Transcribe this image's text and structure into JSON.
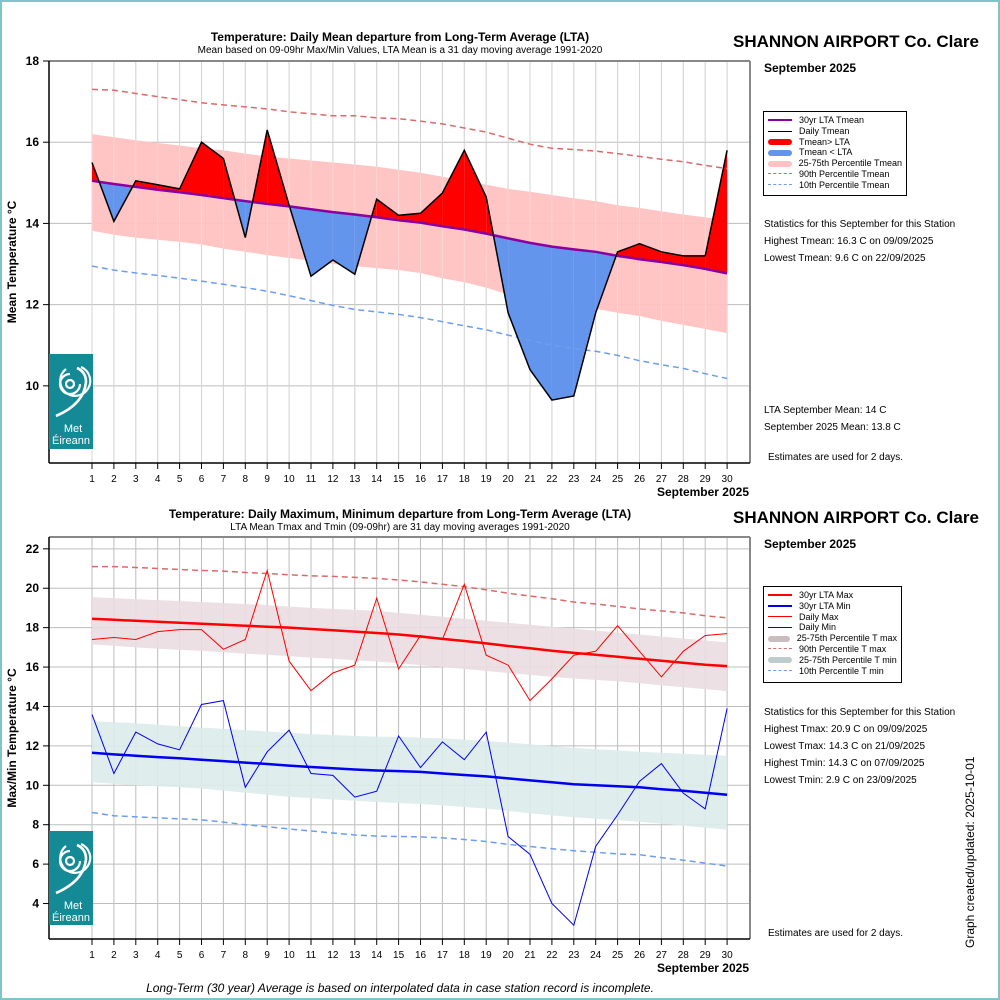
{
  "station": "SHANNON AIRPORT Co. Clare",
  "month_label": "September 2025",
  "graph_updated": "Graph created/updated:  2025-10-01",
  "footer_note": "Long-Term (30 year) Average is based on interpolated data in case station record is incomplete.",
  "logo": {
    "line1": "Met",
    "line2": "Éireann",
    "icon": "met-eireann-swirl-icon",
    "color": "#138a96"
  },
  "colors": {
    "above": "#ff0000",
    "below": "#6495ed",
    "lta_mean": "#8b00a0",
    "band_mean": "#ffc1c1",
    "p90": "#d96a6a",
    "p10": "#6c9ef0",
    "lta_max": "#ff0000",
    "lta_min": "#0000ee",
    "band_max": "#eadde2",
    "band_min": "#dcebea",
    "grid": "#bdbdbd",
    "border": "#7fc4c8"
  },
  "mean_panel": {
    "legend": [
      "30yr LTA Tmean",
      "Daily Tmean",
      "Tmean> LTA",
      "Tmean < LTA",
      "25-75th Percentile Tmean",
      "90th Percentile Tmean",
      "10th Percentile Tmean"
    ],
    "stats_heading": "Statistics for this September for this Station",
    "stats": [
      "Highest Tmean: 16.3 C on 09/09/2025",
      "Lowest Tmean: 9.6 C on 22/09/2025"
    ],
    "lta_month_mean": "LTA September Mean: 14 C",
    "month_mean": "September 2025 Mean: 13.8 C",
    "estimates_note": "Estimates are used for 2 days."
  },
  "maxmin_panel": {
    "legend": [
      "30yr LTA Max",
      "30yr LTA Min",
      "Daily Max",
      "Daily Min",
      "25-75th Percentile T max",
      "90th Percentile T max",
      "25-75th Percentile T min",
      "10th Percentile T min"
    ],
    "stats_heading": "Statistics for this September for this Station",
    "stats": [
      "Highest Tmax: 20.9 C on 09/09/2025",
      "Lowest Tmax: 14.3 C on 21/09/2025",
      "Highest Tmin: 14.3 C on 07/09/2025",
      "Lowest Tmin: 2.9 C on 23/09/2025"
    ],
    "estimates_note": "Estimates are used for 2 days."
  },
  "chart_data": [
    {
      "type": "area",
      "title": "Temperature: Daily Mean departure from Long-Term Average (LTA)",
      "subtitle": "Mean based on 09-09hr Max/Min Values, LTA Mean is a 31 day moving average 1991-2020",
      "xlabel": "September 2025",
      "ylabel": "Mean Temperature °C",
      "x": [
        1,
        2,
        3,
        4,
        5,
        6,
        7,
        8,
        9,
        10,
        11,
        12,
        13,
        14,
        15,
        16,
        17,
        18,
        19,
        20,
        21,
        22,
        23,
        24,
        25,
        26,
        27,
        28,
        29,
        30
      ],
      "ylim": [
        8.1,
        18
      ],
      "yticks": [
        10,
        12,
        14,
        16,
        18
      ],
      "grid": true,
      "legend_position": "right",
      "series": [
        {
          "name": "Daily Tmean",
          "values": [
            15.5,
            14.05,
            15.05,
            14.95,
            14.85,
            16.0,
            15.6,
            13.65,
            16.3,
            14.45,
            12.7,
            13.1,
            12.75,
            14.6,
            14.2,
            14.25,
            14.75,
            15.8,
            14.65,
            11.8,
            10.4,
            9.65,
            9.75,
            11.8,
            13.3,
            13.5,
            13.3,
            13.2,
            13.2,
            15.8
          ]
        },
        {
          "name": "30yr LTA Tmean",
          "values": [
            15.05,
            14.97,
            14.9,
            14.83,
            14.77,
            14.7,
            14.62,
            14.55,
            14.48,
            14.42,
            14.35,
            14.28,
            14.22,
            14.15,
            14.08,
            14.02,
            13.93,
            13.85,
            13.75,
            13.63,
            13.52,
            13.43,
            13.36,
            13.3,
            13.2,
            13.12,
            13.05,
            12.97,
            12.88,
            12.77
          ]
        },
        {
          "name": "25-75th Percentile Tmean (upper)",
          "values": [
            16.2,
            16.12,
            16.05,
            15.98,
            15.92,
            15.85,
            15.8,
            15.72,
            15.65,
            15.6,
            15.55,
            15.5,
            15.45,
            15.4,
            15.32,
            15.25,
            15.15,
            15.05,
            14.95,
            14.85,
            14.78,
            14.7,
            14.62,
            14.55,
            14.45,
            14.38,
            14.3,
            14.22,
            14.15,
            14.08
          ]
        },
        {
          "name": "25-75th Percentile Tmean (lower)",
          "values": [
            13.82,
            13.72,
            13.65,
            13.6,
            13.55,
            13.48,
            13.38,
            13.3,
            13.22,
            13.15,
            13.08,
            13.0,
            12.95,
            12.9,
            12.85,
            12.78,
            12.65,
            12.55,
            12.42,
            12.25,
            12.12,
            12.02,
            11.95,
            11.9,
            11.8,
            11.72,
            11.6,
            11.5,
            11.4,
            11.3
          ]
        },
        {
          "name": "90th Percentile Tmean",
          "values": [
            17.3,
            17.28,
            17.2,
            17.12,
            17.05,
            16.97,
            16.92,
            16.87,
            16.82,
            16.75,
            16.7,
            16.65,
            16.65,
            16.6,
            16.58,
            16.52,
            16.45,
            16.35,
            16.25,
            16.1,
            15.95,
            15.85,
            15.82,
            15.78,
            15.72,
            15.65,
            15.58,
            15.52,
            15.43,
            15.35
          ]
        },
        {
          "name": "10th Percentile Tmean",
          "values": [
            12.95,
            12.85,
            12.78,
            12.72,
            12.65,
            12.58,
            12.5,
            12.42,
            12.33,
            12.22,
            12.1,
            11.98,
            11.88,
            11.82,
            11.76,
            11.68,
            11.58,
            11.48,
            11.38,
            11.25,
            11.12,
            11.0,
            10.92,
            10.85,
            10.75,
            10.62,
            10.52,
            10.43,
            10.3,
            10.18
          ]
        }
      ]
    },
    {
      "type": "line",
      "title": "Temperature: Daily Maximum, Minimum departure from Long-Term Average (LTA)",
      "subtitle": "LTA Mean Tmax and Tmin (09-09hr) are 31 day moving averages 1991-2020",
      "xlabel": "September 2025",
      "ylabel": "Max/Min Temperature °C",
      "x": [
        1,
        2,
        3,
        4,
        5,
        6,
        7,
        8,
        9,
        10,
        11,
        12,
        13,
        14,
        15,
        16,
        17,
        18,
        19,
        20,
        21,
        22,
        23,
        24,
        25,
        26,
        27,
        28,
        29,
        30
      ],
      "ylim": [
        2.2,
        22.6
      ],
      "yticks": [
        4,
        6,
        8,
        10,
        12,
        14,
        16,
        18,
        20,
        22
      ],
      "grid": true,
      "legend_position": "right",
      "series": [
        {
          "name": "Daily Max",
          "values": [
            17.4,
            17.5,
            17.4,
            17.8,
            17.9,
            17.9,
            16.9,
            17.4,
            20.9,
            16.3,
            14.8,
            15.7,
            16.1,
            19.5,
            15.9,
            17.6,
            17.4,
            20.2,
            16.6,
            16.1,
            14.3,
            15.4,
            16.6,
            16.8,
            18.1,
            16.8,
            15.5,
            16.8,
            17.6,
            17.7
          ]
        },
        {
          "name": "Daily Min",
          "values": [
            13.6,
            10.6,
            12.7,
            12.1,
            11.8,
            14.1,
            14.3,
            9.9,
            11.7,
            12.8,
            10.6,
            10.5,
            9.4,
            9.7,
            12.5,
            10.9,
            12.2,
            11.3,
            12.7,
            7.4,
            6.5,
            4.0,
            2.9,
            6.9,
            8.5,
            10.2,
            11.1,
            9.6,
            8.8,
            13.9
          ]
        },
        {
          "name": "30yr LTA Max",
          "values": [
            18.45,
            18.4,
            18.35,
            18.3,
            18.25,
            18.2,
            18.15,
            18.1,
            18.05,
            18.0,
            17.93,
            17.87,
            17.8,
            17.73,
            17.65,
            17.55,
            17.43,
            17.32,
            17.2,
            17.07,
            16.95,
            16.83,
            16.72,
            16.62,
            16.52,
            16.42,
            16.32,
            16.22,
            16.12,
            16.05
          ]
        },
        {
          "name": "30yr LTA Min",
          "values": [
            11.65,
            11.57,
            11.5,
            11.43,
            11.37,
            11.3,
            11.23,
            11.15,
            11.08,
            11.0,
            10.93,
            10.87,
            10.8,
            10.75,
            10.72,
            10.68,
            10.6,
            10.52,
            10.45,
            10.35,
            10.25,
            10.15,
            10.05,
            10.0,
            9.95,
            9.9,
            9.8,
            9.72,
            9.62,
            9.52
          ]
        },
        {
          "name": "25-75th Percentile T max (upper)",
          "values": [
            19.55,
            19.5,
            19.45,
            19.4,
            19.35,
            19.3,
            19.25,
            19.2,
            19.15,
            19.07,
            19.0,
            18.95,
            18.9,
            18.85,
            18.75,
            18.65,
            18.55,
            18.45,
            18.35,
            18.25,
            18.15,
            18.05,
            17.95,
            17.85,
            17.75,
            17.65,
            17.55,
            17.45,
            17.35,
            17.25
          ]
        },
        {
          "name": "25-75th Percentile T max (lower)",
          "values": [
            17.15,
            17.08,
            17.0,
            16.93,
            16.87,
            16.82,
            16.75,
            16.68,
            16.62,
            16.55,
            16.48,
            16.42,
            16.35,
            16.28,
            16.2,
            16.1,
            16.0,
            15.9,
            15.8,
            15.7,
            15.6,
            15.5,
            15.42,
            15.35,
            15.27,
            15.18,
            15.08,
            14.98,
            14.88,
            14.78
          ]
        },
        {
          "name": "25-75th Percentile T min (upper)",
          "values": [
            13.25,
            13.2,
            13.15,
            13.07,
            13.0,
            12.93,
            12.87,
            12.8,
            12.73,
            12.67,
            12.6,
            12.55,
            12.5,
            12.47,
            12.45,
            12.42,
            12.38,
            12.32,
            12.25,
            12.17,
            12.08,
            11.98,
            11.9,
            11.83,
            11.77,
            11.7,
            11.65,
            11.6,
            11.55,
            11.5
          ]
        },
        {
          "name": "25-75th Percentile T min (lower)",
          "values": [
            10.15,
            10.08,
            10.0,
            9.95,
            9.9,
            9.83,
            9.73,
            9.63,
            9.52,
            9.42,
            9.35,
            9.28,
            9.22,
            9.15,
            9.1,
            9.05,
            8.98,
            8.9,
            8.82,
            8.7,
            8.58,
            8.47,
            8.38,
            8.3,
            8.23,
            8.15,
            8.05,
            7.95,
            7.85,
            7.75
          ]
        },
        {
          "name": "90th Percentile T max",
          "values": [
            21.1,
            21.1,
            21.05,
            21.0,
            20.95,
            20.9,
            20.87,
            20.8,
            20.75,
            20.68,
            20.63,
            20.6,
            20.55,
            20.5,
            20.42,
            20.32,
            20.2,
            20.08,
            19.92,
            19.75,
            19.6,
            19.47,
            19.3,
            19.2,
            19.08,
            18.95,
            18.85,
            18.75,
            18.6,
            18.5
          ]
        },
        {
          "name": "10th Percentile T min",
          "values": [
            8.62,
            8.45,
            8.4,
            8.35,
            8.3,
            8.25,
            8.13,
            8.0,
            7.9,
            7.78,
            7.68,
            7.58,
            7.48,
            7.42,
            7.4,
            7.38,
            7.33,
            7.25,
            7.15,
            7.0,
            6.9,
            6.78,
            6.68,
            6.6,
            6.52,
            6.48,
            6.33,
            6.2,
            6.05,
            5.9
          ]
        }
      ]
    }
  ]
}
